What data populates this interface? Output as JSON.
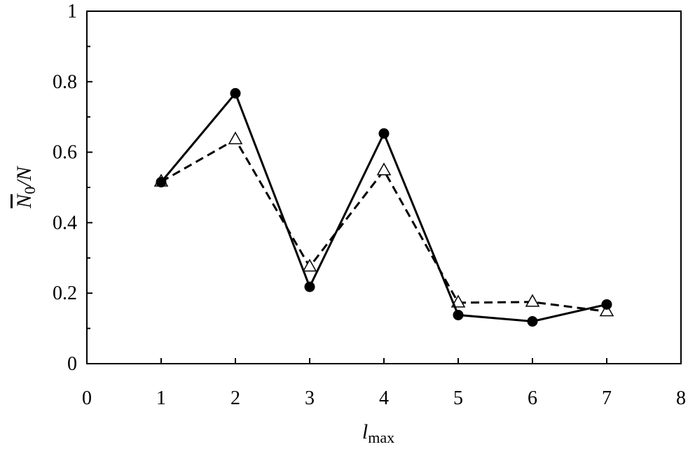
{
  "chart_data": {
    "type": "line",
    "title": "",
    "xlabel": {
      "main": "l",
      "sub": "max"
    },
    "ylabel": {
      "overbar": "N",
      "sub": "0",
      "rest": "/N"
    },
    "xlim": [
      0,
      8
    ],
    "ylim": [
      0,
      1
    ],
    "xticks": [
      "0",
      "1",
      "2",
      "3",
      "4",
      "5",
      "6",
      "7",
      "8"
    ],
    "yticks": [
      "0",
      "0.2",
      "0.4",
      "0.6",
      "0.8",
      "1"
    ],
    "grid": false,
    "legend": "none",
    "series": [
      {
        "marker": "filled-circle",
        "line": "solid",
        "color": "#000000",
        "x": [
          1,
          2,
          3,
          4,
          5,
          6,
          7
        ],
        "y": [
          0.515,
          0.767,
          0.218,
          0.653,
          0.138,
          0.12,
          0.168
        ]
      },
      {
        "marker": "open-triangle",
        "line": "dashed",
        "color": "#000000",
        "x": [
          1,
          2,
          3,
          4,
          5,
          6,
          7
        ],
        "y": [
          0.516,
          0.636,
          0.275,
          0.548,
          0.173,
          0.175,
          0.148
        ]
      }
    ]
  }
}
